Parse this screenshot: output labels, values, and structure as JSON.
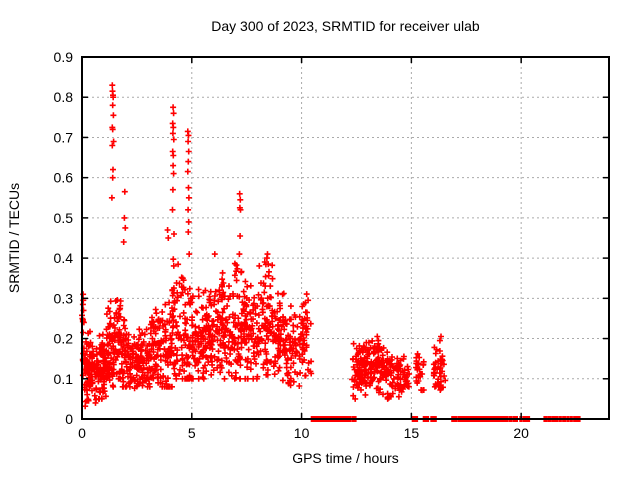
{
  "window": {
    "background": "#ffffff"
  },
  "chart_data": {
    "type": "scatter",
    "title": "Day 300 of 2023, SRMTID for receiver ulab",
    "xlabel": "GPS time / hours",
    "ylabel": "SRMTID / TECUs",
    "xlim": [
      0,
      24
    ],
    "ylim": [
      0,
      0.9
    ],
    "grid": true,
    "legend": "none",
    "xticks": [
      {
        "v": 0,
        "label": "0"
      },
      {
        "v": 5,
        "label": "5"
      },
      {
        "v": 10,
        "label": "10"
      },
      {
        "v": 15,
        "label": "15"
      },
      {
        "v": 20,
        "label": "20"
      }
    ],
    "yticks": [
      {
        "v": 0,
        "label": "0"
      },
      {
        "v": 0.1,
        "label": "0.1"
      },
      {
        "v": 0.2,
        "label": "0.2"
      },
      {
        "v": 0.3,
        "label": "0.3"
      },
      {
        "v": 0.4,
        "label": "0.4"
      },
      {
        "v": 0.5,
        "label": "0.5"
      },
      {
        "v": 0.6,
        "label": "0.6"
      },
      {
        "v": 0.7,
        "label": "0.7"
      },
      {
        "v": 0.8,
        "label": "0.8"
      },
      {
        "v": 0.9,
        "label": "0.9"
      }
    ],
    "marker": {
      "shape": "plus",
      "color": "#ff0000",
      "size": 7
    },
    "colors": {
      "frame": "#000000",
      "grid": "#aaaaaa",
      "text": "#000000"
    },
    "render_seed": 20231300,
    "feature_points": [
      [
        0.05,
        0.31
      ],
      [
        0.06,
        0.295
      ],
      [
        0.04,
        0.285
      ],
      [
        0.07,
        0.27
      ],
      [
        1.38,
        0.83
      ],
      [
        1.39,
        0.815
      ],
      [
        1.41,
        0.805
      ],
      [
        1.42,
        0.8
      ],
      [
        1.4,
        0.78
      ],
      [
        1.43,
        0.755
      ],
      [
        1.38,
        0.725
      ],
      [
        1.4,
        0.72
      ],
      [
        1.44,
        0.69
      ],
      [
        1.38,
        0.68
      ],
      [
        1.41,
        0.62
      ],
      [
        1.4,
        0.6
      ],
      [
        1.36,
        0.55
      ],
      [
        1.95,
        0.565
      ],
      [
        1.93,
        0.5
      ],
      [
        1.97,
        0.475
      ],
      [
        1.9,
        0.44
      ],
      [
        3.9,
        0.47
      ],
      [
        3.93,
        0.45
      ],
      [
        4.15,
        0.775
      ],
      [
        4.17,
        0.76
      ],
      [
        4.13,
        0.735
      ],
      [
        4.16,
        0.725
      ],
      [
        4.14,
        0.71
      ],
      [
        4.18,
        0.695
      ],
      [
        4.13,
        0.665
      ],
      [
        4.16,
        0.655
      ],
      [
        4.15,
        0.63
      ],
      [
        4.17,
        0.61
      ],
      [
        4.14,
        0.57
      ],
      [
        4.12,
        0.52
      ],
      [
        4.19,
        0.46
      ],
      [
        4.82,
        0.715
      ],
      [
        4.85,
        0.705
      ],
      [
        4.83,
        0.69
      ],
      [
        4.86,
        0.665
      ],
      [
        4.84,
        0.64
      ],
      [
        4.82,
        0.615
      ],
      [
        4.85,
        0.575
      ],
      [
        4.87,
        0.55
      ],
      [
        4.83,
        0.52
      ],
      [
        4.86,
        0.49
      ],
      [
        4.84,
        0.465
      ],
      [
        4.88,
        0.41
      ],
      [
        6.05,
        0.41
      ],
      [
        7.18,
        0.56
      ],
      [
        7.21,
        0.545
      ],
      [
        7.19,
        0.525
      ],
      [
        7.22,
        0.52
      ],
      [
        7.2,
        0.455
      ],
      [
        7.17,
        0.41
      ],
      [
        8.45,
        0.41
      ],
      [
        8.42,
        0.4
      ],
      [
        8.48,
        0.385
      ],
      [
        13.45,
        0.205
      ],
      [
        13.5,
        0.195
      ],
      [
        16.35,
        0.205
      ],
      [
        16.3,
        0.195
      ]
    ],
    "dense_bands": [
      {
        "x0": 0.0,
        "x1": 0.12,
        "y_min": 0.1,
        "y_max": 0.31,
        "y_center": 0.2,
        "count": 14
      },
      {
        "x0": 0.1,
        "x1": 0.7,
        "y_min": 0.03,
        "y_max": 0.22,
        "y_center": 0.12,
        "count": 95
      },
      {
        "x0": 0.7,
        "x1": 1.1,
        "y_min": 0.05,
        "y_max": 0.25,
        "y_center": 0.13,
        "count": 70
      },
      {
        "x0": 1.1,
        "x1": 1.45,
        "y_min": 0.08,
        "y_max": 0.33,
        "y_center": 0.17,
        "count": 60
      },
      {
        "x0": 1.45,
        "x1": 1.8,
        "y_min": 0.1,
        "y_max": 0.33,
        "y_center": 0.2,
        "count": 48
      },
      {
        "x0": 1.8,
        "x1": 2.15,
        "y_min": 0.08,
        "y_max": 0.3,
        "y_center": 0.16,
        "count": 50
      },
      {
        "x0": 2.15,
        "x1": 2.6,
        "y_min": 0.07,
        "y_max": 0.22,
        "y_center": 0.14,
        "count": 55
      },
      {
        "x0": 2.6,
        "x1": 3.1,
        "y_min": 0.08,
        "y_max": 0.25,
        "y_center": 0.15,
        "count": 58
      },
      {
        "x0": 3.1,
        "x1": 3.6,
        "y_min": 0.09,
        "y_max": 0.3,
        "y_center": 0.18,
        "count": 65
      },
      {
        "x0": 3.6,
        "x1": 4.1,
        "y_min": 0.08,
        "y_max": 0.32,
        "y_center": 0.17,
        "count": 60
      },
      {
        "x0": 4.1,
        "x1": 4.55,
        "y_min": 0.1,
        "y_max": 0.45,
        "y_center": 0.22,
        "count": 55
      },
      {
        "x0": 4.55,
        "x1": 5.0,
        "y_min": 0.1,
        "y_max": 0.5,
        "y_center": 0.22,
        "count": 55
      },
      {
        "x0": 5.0,
        "x1": 5.6,
        "y_min": 0.1,
        "y_max": 0.36,
        "y_center": 0.2,
        "count": 72
      },
      {
        "x0": 5.6,
        "x1": 6.2,
        "y_min": 0.11,
        "y_max": 0.36,
        "y_center": 0.22,
        "count": 72
      },
      {
        "x0": 6.2,
        "x1": 6.8,
        "y_min": 0.1,
        "y_max": 0.38,
        "y_center": 0.22,
        "count": 72
      },
      {
        "x0": 6.8,
        "x1": 7.4,
        "y_min": 0.1,
        "y_max": 0.44,
        "y_center": 0.23,
        "count": 70
      },
      {
        "x0": 7.4,
        "x1": 8.0,
        "y_min": 0.1,
        "y_max": 0.38,
        "y_center": 0.21,
        "count": 70
      },
      {
        "x0": 8.0,
        "x1": 8.7,
        "y_min": 0.11,
        "y_max": 0.41,
        "y_center": 0.24,
        "count": 78
      },
      {
        "x0": 8.7,
        "x1": 9.3,
        "y_min": 0.09,
        "y_max": 0.33,
        "y_center": 0.2,
        "count": 65
      },
      {
        "x0": 9.3,
        "x1": 9.9,
        "y_min": 0.08,
        "y_max": 0.3,
        "y_center": 0.17,
        "count": 55
      },
      {
        "x0": 9.9,
        "x1": 10.45,
        "y_min": 0.1,
        "y_max": 0.33,
        "y_center": 0.2,
        "count": 48
      },
      {
        "x0": 12.3,
        "x1": 12.75,
        "y_min": 0.05,
        "y_max": 0.19,
        "y_center": 0.12,
        "count": 48
      },
      {
        "x0": 12.75,
        "x1": 13.2,
        "y_min": 0.06,
        "y_max": 0.19,
        "y_center": 0.13,
        "count": 52
      },
      {
        "x0": 13.2,
        "x1": 13.7,
        "y_min": 0.06,
        "y_max": 0.21,
        "y_center": 0.14,
        "count": 55
      },
      {
        "x0": 13.7,
        "x1": 14.2,
        "y_min": 0.05,
        "y_max": 0.19,
        "y_center": 0.12,
        "count": 50
      },
      {
        "x0": 14.2,
        "x1": 14.9,
        "y_min": 0.04,
        "y_max": 0.16,
        "y_center": 0.1,
        "count": 52
      },
      {
        "x0": 15.2,
        "x1": 15.6,
        "y_min": 0.06,
        "y_max": 0.17,
        "y_center": 0.11,
        "count": 26
      },
      {
        "x0": 16.0,
        "x1": 16.55,
        "y_min": 0.07,
        "y_max": 0.2,
        "y_center": 0.13,
        "count": 42
      }
    ],
    "zero_segments": [
      [
        10.45,
        11.05
      ],
      [
        11.1,
        11.18
      ],
      [
        11.25,
        11.32
      ],
      [
        11.38,
        11.5
      ],
      [
        11.57,
        11.63
      ],
      [
        11.7,
        11.82
      ],
      [
        11.88,
        11.93
      ],
      [
        12.0,
        12.1
      ],
      [
        12.17,
        12.22
      ],
      [
        12.3,
        12.47
      ],
      [
        15.05,
        15.27
      ],
      [
        15.55,
        15.77
      ],
      [
        15.9,
        16.12
      ],
      [
        16.85,
        17.07
      ],
      [
        17.15,
        17.38
      ],
      [
        17.45,
        18.12
      ],
      [
        18.18,
        18.93
      ],
      [
        18.98,
        19.03
      ],
      [
        19.08,
        19.13
      ],
      [
        19.2,
        19.25
      ],
      [
        19.32,
        19.37
      ],
      [
        19.45,
        19.57
      ],
      [
        19.65,
        19.82
      ],
      [
        19.95,
        20.02
      ],
      [
        20.1,
        20.37
      ],
      [
        21.05,
        21.17
      ],
      [
        21.25,
        21.32
      ],
      [
        21.4,
        21.67
      ],
      [
        21.75,
        21.82
      ],
      [
        21.9,
        22.02
      ],
      [
        22.1,
        22.17
      ],
      [
        22.25,
        22.32
      ],
      [
        22.4,
        22.67
      ]
    ]
  }
}
